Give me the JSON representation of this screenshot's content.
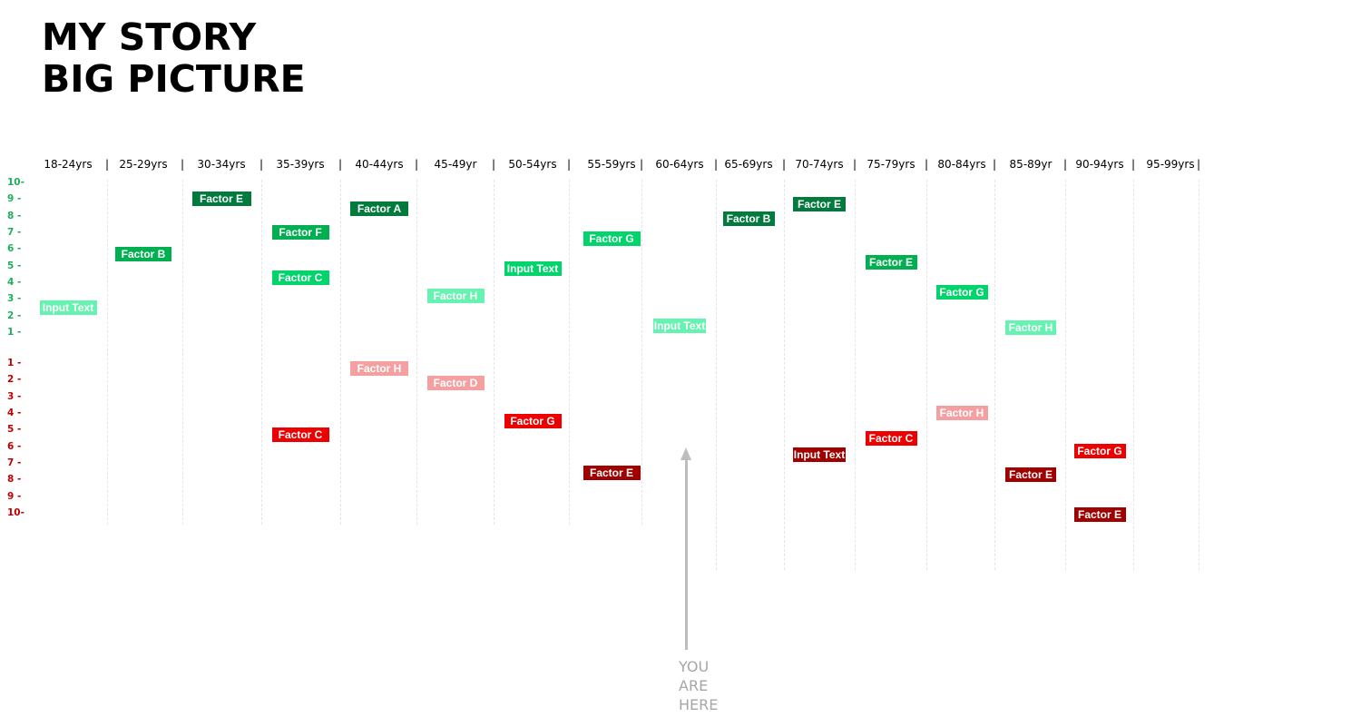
{
  "title": {
    "line1": "MY STORY",
    "line2": "BIG PICTURE"
  },
  "age_bands": [
    "18-24yrs",
    "25-29yrs",
    "30-34yrs",
    "35-39yrs",
    "40-44yrs",
    "45-49yr",
    "50-54yrs",
    "55-59yrs",
    "60-64yrs",
    "65-69yrs",
    "70-74yrs",
    "75-79yrs",
    "80-84yrs",
    "85-89yr",
    "90-94yrs",
    "95-99yrs"
  ],
  "separator": "|",
  "positive_scale": [
    "10-",
    "9 -",
    "8 -",
    "7 -",
    "6 -",
    "5 -",
    "4 -",
    "3 -",
    "2 -",
    "1 -"
  ],
  "negative_scale": [
    "1 -",
    "2 -",
    "3 -",
    "4 -",
    "5 -",
    "6 -",
    "7 -",
    "8 -",
    "9 -",
    "10-"
  ],
  "colors": {
    "pos_dark": "#007a3d",
    "pos_mid": "#00b050",
    "pos_bright": "#00d46a",
    "pos_light": "#66f2b0",
    "neg_light": "#f5a0a0",
    "neg_mid": "#ee0000",
    "neg_dark": "#a00000",
    "scale_pos": "#1fae5a",
    "scale_neg": "#c00000",
    "arrow": "#bdbdbd"
  },
  "factors": [
    {
      "label": "Input Text",
      "band": 0,
      "polarity": "positive",
      "score": 2.5,
      "shade": "pos_light"
    },
    {
      "label": "Factor B",
      "band": 1,
      "polarity": "positive",
      "score": 5.7,
      "shade": "pos_mid"
    },
    {
      "label": "Factor E",
      "band": 2,
      "polarity": "positive",
      "score": 9,
      "shade": "pos_dark"
    },
    {
      "label": "Factor F",
      "band": 3,
      "polarity": "positive",
      "score": 7,
      "shade": "pos_mid"
    },
    {
      "label": "Factor C",
      "band": 3,
      "polarity": "positive",
      "score": 4.3,
      "shade": "pos_bright"
    },
    {
      "label": "Factor A",
      "band": 4,
      "polarity": "positive",
      "score": 8.4,
      "shade": "pos_dark"
    },
    {
      "label": "Factor H",
      "band": 5,
      "polarity": "positive",
      "score": 3.2,
      "shade": "pos_light"
    },
    {
      "label": "Input Text",
      "band": 6,
      "polarity": "positive",
      "score": 4.8,
      "shade": "pos_bright"
    },
    {
      "label": "Factor G",
      "band": 7,
      "polarity": "positive",
      "score": 6.6,
      "shade": "pos_bright"
    },
    {
      "label": "Input Text",
      "band": 8,
      "polarity": "positive",
      "score": 1.4,
      "shade": "pos_light"
    },
    {
      "label": "Factor B",
      "band": 9,
      "polarity": "positive",
      "score": 7.8,
      "shade": "pos_dark"
    },
    {
      "label": "Factor E",
      "band": 10,
      "polarity": "positive",
      "score": 8.7,
      "shade": "pos_dark"
    },
    {
      "label": "Factor E",
      "band": 11,
      "polarity": "positive",
      "score": 5.2,
      "shade": "pos_mid"
    },
    {
      "label": "Factor G",
      "band": 12,
      "polarity": "positive",
      "score": 3.4,
      "shade": "pos_bright"
    },
    {
      "label": "Factor H",
      "band": 13,
      "polarity": "positive",
      "score": 1.3,
      "shade": "pos_light"
    },
    {
      "label": "Factor C",
      "band": 3,
      "polarity": "negative",
      "score": 5.3,
      "shade": "neg_mid"
    },
    {
      "label": "Factor H",
      "band": 4,
      "polarity": "negative",
      "score": 1.3,
      "shade": "neg_light"
    },
    {
      "label": "Factor D",
      "band": 5,
      "polarity": "negative",
      "score": 2.2,
      "shade": "neg_light"
    },
    {
      "label": "Factor G",
      "band": 6,
      "polarity": "negative",
      "score": 4.5,
      "shade": "neg_mid"
    },
    {
      "label": "Factor E",
      "band": 7,
      "polarity": "negative",
      "score": 7.6,
      "shade": "neg_dark"
    },
    {
      "label": "Input Text",
      "band": 10,
      "polarity": "negative",
      "score": 6.5,
      "shade": "neg_dark"
    },
    {
      "label": "Factor C",
      "band": 11,
      "polarity": "negative",
      "score": 5.5,
      "shade": "neg_mid"
    },
    {
      "label": "Factor H",
      "band": 12,
      "polarity": "negative",
      "score": 4,
      "shade": "neg_light"
    },
    {
      "label": "Factor E",
      "band": 13,
      "polarity": "negative",
      "score": 7.7,
      "shade": "neg_dark"
    },
    {
      "label": "Factor G",
      "band": 14,
      "polarity": "negative",
      "score": 6.3,
      "shade": "neg_mid"
    },
    {
      "label": "Factor E",
      "band": 14,
      "polarity": "negative",
      "score": 10.1,
      "shade": "neg_dark"
    }
  ],
  "marker": {
    "lines": [
      "YOU",
      "ARE",
      "HERE"
    ],
    "band": 8
  }
}
